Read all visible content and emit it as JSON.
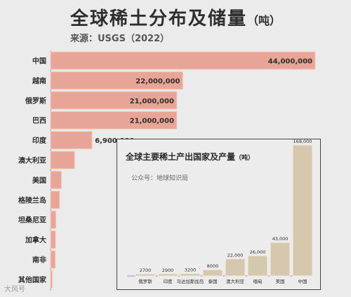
{
  "header": {
    "title": "全球稀土分布及储量",
    "title_unit": "（吨）",
    "source": "来源：USGS（2022）"
  },
  "inset": {
    "title": "全球主要稀土产出国家及产量",
    "title_unit": "（吨）",
    "subtitle": "公众号：地球知识局"
  },
  "watermark": "大风号",
  "colors": {
    "main_bar": "#e8a597",
    "main_bar_stroke": "#f3ccc2",
    "inset_bar": "#d6c8ae",
    "text": "#2e2e2e",
    "background": "#ebebeb"
  },
  "chart_data": [
    {
      "type": "bar",
      "orientation": "horizontal",
      "title": "全球稀土分布及储量（吨）",
      "categories": [
        "中国",
        "越南",
        "俄罗斯",
        "巴西",
        "印度",
        "澳大利亚",
        "美国",
        "格陵兰岛",
        "坦桑尼亚",
        "加拿大",
        "南非",
        "其他国家"
      ],
      "values": [
        44000000,
        22000000,
        21000000,
        21000000,
        6900000,
        4000000,
        1800000,
        1500000,
        890000,
        830000,
        790000,
        300000
      ],
      "labels": [
        "44,000,000",
        "22,000,000",
        "21,000,000",
        "21,000,000",
        "6,900,000",
        "",
        "",
        "",
        "",
        "",
        "",
        ""
      ],
      "xlim": [
        0,
        44000000
      ]
    },
    {
      "type": "bar",
      "orientation": "vertical",
      "title": "全球主要稀土产出国家及产量（吨）",
      "categories": [
        "俄罗斯",
        "印度",
        "马达加斯加岛",
        "泰国",
        "澳大利亚",
        "缅甸",
        "美国",
        "中国"
      ],
      "values": [
        2700,
        2900,
        3200,
        8000,
        22000,
        26000,
        43000,
        168000
      ],
      "labels": [
        "2700",
        "2900",
        "3200",
        "8000",
        "22,000",
        "26,000",
        "43,000",
        "168,000"
      ],
      "ylim": [
        0,
        168000
      ]
    }
  ]
}
